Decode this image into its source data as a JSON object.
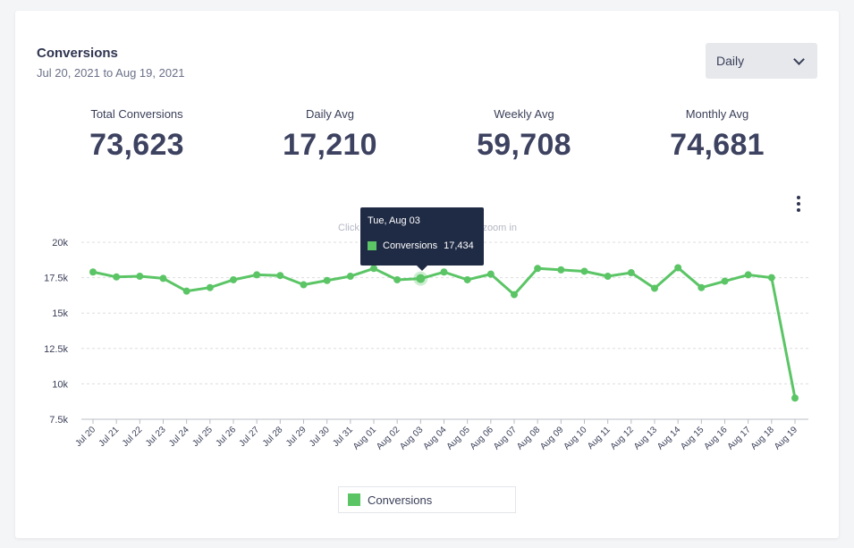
{
  "header": {
    "title": "Conversions",
    "date_range": "Jul 20, 2021 to Aug 19, 2021",
    "period_select": "Daily"
  },
  "stats": [
    {
      "label": "Total Conversions",
      "value": "73,623"
    },
    {
      "label": "Daily Avg",
      "value": "17,210"
    },
    {
      "label": "Weekly Avg",
      "value": "59,708"
    },
    {
      "label": "Monthly Avg",
      "value": "74,681"
    }
  ],
  "chart_hint": "Click and drag in the plot area to zoom in",
  "tooltip": {
    "date": "Tue, Aug 03",
    "series": "Conversions",
    "value": "17,434"
  },
  "legend": {
    "label": "Conversions"
  },
  "colors": {
    "series": "#5bc566",
    "grid": "#dddddd",
    "text": "#3a3f58"
  },
  "chart_data": {
    "type": "line",
    "title": "",
    "xlabel": "",
    "ylabel": "",
    "ylim": [
      7500,
      20000
    ],
    "y_ticks": [
      20000,
      17500,
      15000,
      12500,
      10000,
      7500
    ],
    "y_tick_labels": [
      "20k",
      "17.5k",
      "15k",
      "12.5k",
      "10k",
      "7.5k"
    ],
    "grid": true,
    "legend_position": "bottom",
    "categories": [
      "Jul 20",
      "Jul 21",
      "Jul 22",
      "Jul 23",
      "Jul 24",
      "Jul 25",
      "Jul 26",
      "Jul 27",
      "Jul 28",
      "Jul 29",
      "Jul 30",
      "Jul 31",
      "Aug 01",
      "Aug 02",
      "Aug 03",
      "Aug 04",
      "Aug 05",
      "Aug 06",
      "Aug 07",
      "Aug 08",
      "Aug 09",
      "Aug 10",
      "Aug 11",
      "Aug 12",
      "Aug 13",
      "Aug 14",
      "Aug 15",
      "Aug 16",
      "Aug 17",
      "Aug 18",
      "Aug 19"
    ],
    "series": [
      {
        "name": "Conversions",
        "values": [
          17900,
          17550,
          17600,
          17450,
          16550,
          16800,
          17350,
          17700,
          17650,
          17000,
          17300,
          17600,
          18150,
          17350,
          17434,
          17900,
          17350,
          17750,
          16300,
          18150,
          18050,
          17950,
          17600,
          17850,
          16750,
          18200,
          16800,
          17250,
          17700,
          17500,
          9000
        ]
      }
    ],
    "highlighted_index": 14
  }
}
